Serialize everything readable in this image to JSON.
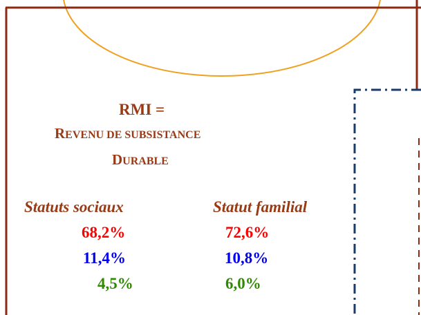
{
  "title": "RMI =",
  "subtitle": [
    "REVENU DE SUBSISTANCE",
    "DURABLE"
  ],
  "columns": [
    {
      "heading": "Statuts sociaux",
      "values": [
        "68,2%",
        "11,4%",
        "4,5%"
      ]
    },
    {
      "heading": "Statut familial",
      "values": [
        "72,6%",
        "10,8%",
        "6,0%"
      ]
    }
  ]
}
